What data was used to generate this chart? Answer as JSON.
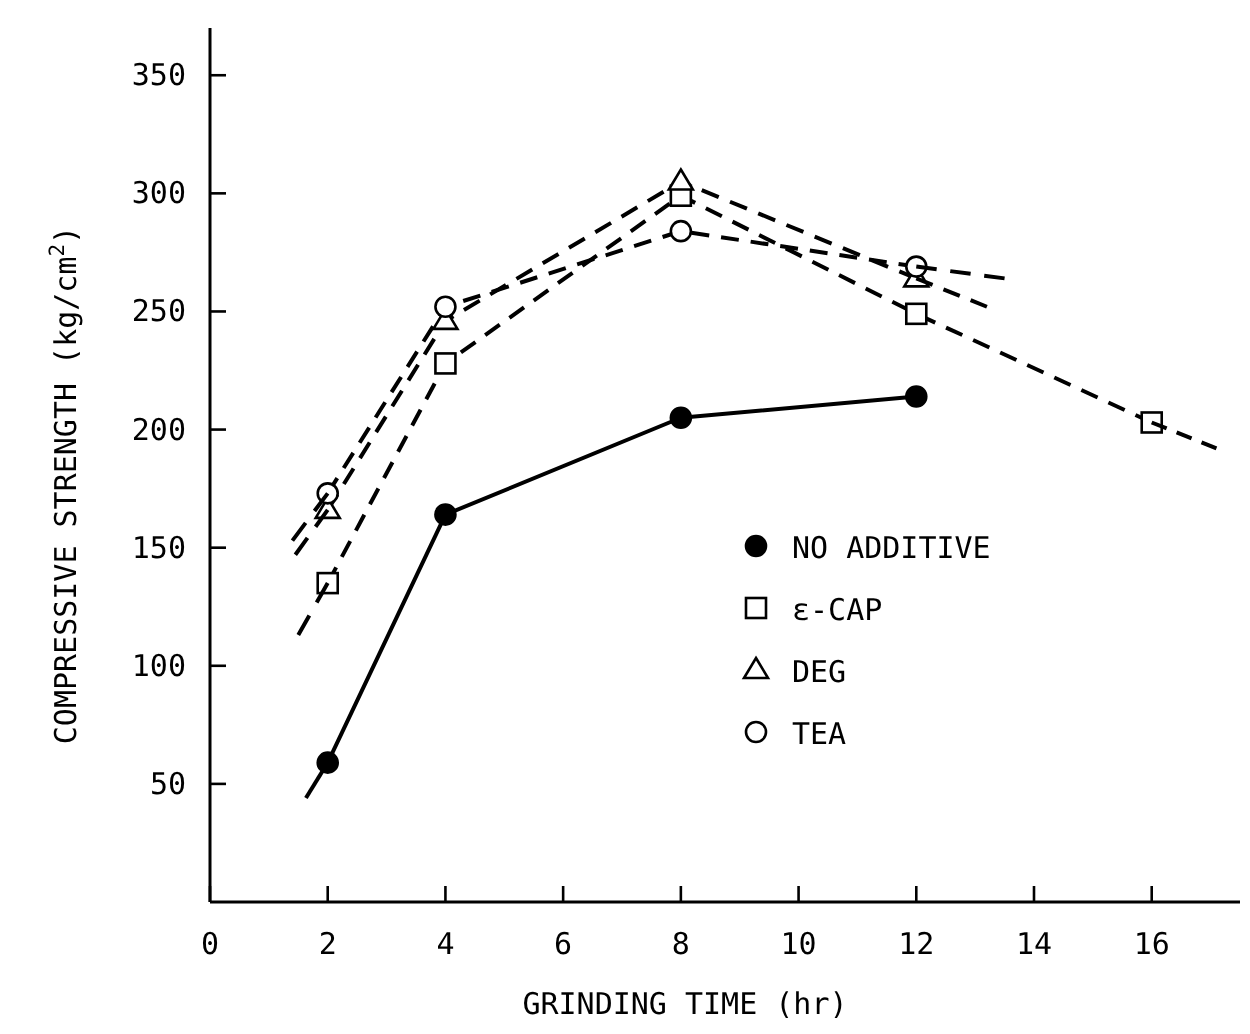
{
  "chart_data": {
    "type": "line",
    "xlabel": "GRINDING TIME (hr)",
    "ylabel": "COMPRESSIVE STRENGTH (kg/cm$^{2}$)",
    "xlim": [
      0,
      17.5
    ],
    "ylim": [
      0,
      370
    ],
    "xticks": [
      0,
      2,
      4,
      6,
      8,
      10,
      12,
      14,
      16
    ],
    "yticks": [
      50,
      100,
      150,
      200,
      250,
      300,
      350
    ],
    "grid": false,
    "legend": "right",
    "series": [
      {
        "name": "NO ADDITIVE",
        "color": "#000000",
        "marker": "circle",
        "line_style": "solid",
        "x": [
          2,
          4,
          8,
          12
        ],
        "values": [
          59,
          164,
          205,
          214
        ]
      },
      {
        "name": "ε-CAP",
        "color": "#000000",
        "marker": "square",
        "line_style": "dashed",
        "x": [
          2,
          4,
          8,
          12,
          16
        ],
        "values": [
          135,
          228,
          299,
          249,
          203
        ]
      },
      {
        "name": "DEG",
        "color": "#000000",
        "marker": "triangle",
        "line_style": "dashed",
        "x": [
          2,
          4,
          8,
          12
        ],
        "values": [
          166,
          246,
          305,
          264
        ]
      },
      {
        "name": "TEA",
        "color": "#000000",
        "marker": "circle",
        "line_style": "dashed",
        "x": [
          2,
          4,
          8,
          12
        ],
        "values": [
          173,
          252,
          284,
          269
        ]
      },
      {
        "type": "line",
        "color": "#000000",
        "marker": "none",
        "line_style": "solid",
        "x": [
          1.63,
          2
        ],
        "values": [
          44,
          59
        ]
      },
      {
        "type": "line",
        "color": "#000000",
        "marker": "none",
        "line_style": "dashed",
        "x": [
          1.5,
          2
        ],
        "values": [
          113,
          135
        ]
      },
      {
        "type": "line",
        "color": "#000000",
        "marker": "none",
        "line_style": "dashed",
        "x": [
          16,
          17.1
        ],
        "values": [
          203,
          192
        ]
      },
      {
        "type": "line",
        "color": "#000000",
        "marker": "none",
        "line_style": "dashed",
        "x": [
          1.45,
          2
        ],
        "values": [
          147,
          166
        ]
      },
      {
        "type": "line",
        "color": "#000000",
        "marker": "none",
        "line_style": "dashed",
        "x": [
          12,
          13.2
        ],
        "values": [
          264,
          252
        ]
      },
      {
        "type": "line",
        "color": "#000000",
        "marker": "none",
        "line_style": "dashed",
        "x": [
          1.4,
          2
        ],
        "values": [
          153,
          173
        ]
      },
      {
        "type": "line",
        "color": "#000000",
        "marker": "none",
        "line_style": "dashed",
        "x": [
          12,
          13.5
        ],
        "values": [
          269,
          264
        ]
      }
    ]
  }
}
